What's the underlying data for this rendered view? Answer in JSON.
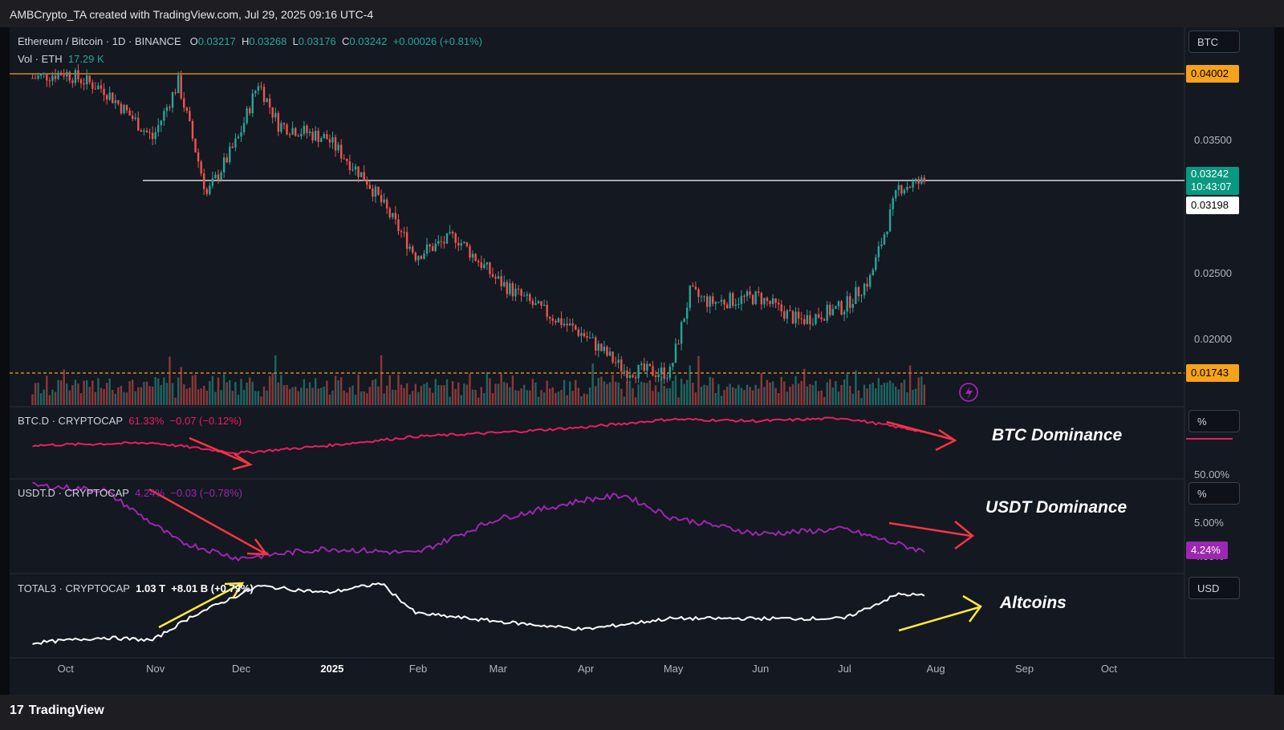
{
  "header": {
    "text": "AMBCrypto_TA created with TradingView.com, Jul 29, 2025 09:16 UTC-4"
  },
  "footer": {
    "brand": "TradingView",
    "brand_mark": "17"
  },
  "main_pane": {
    "symbol": "Ethereum / Bitcoin · 1D · BINANCE",
    "o_label": "O",
    "o": "0.03217",
    "h_label": "H",
    "h": "0.03268",
    "l_label": "L",
    "l": "0.03176",
    "c_label": "C",
    "c": "0.03242",
    "change": "+0.00026 (+0.81%)",
    "vol_label": "Vol · ETH",
    "vol": "17.29 K",
    "currency_button": "BTC",
    "price_ticks": [
      "0.03500",
      "0.02500",
      "0.02000"
    ],
    "tags": {
      "resistance": "0.04002",
      "last": "0.03242",
      "countdown": "10:43:07",
      "level": "0.03198",
      "support": "0.01743"
    },
    "colors": {
      "up": "#26a69a",
      "down": "#ef5350",
      "resistance": "#f7a21b",
      "support": "#f7a21b",
      "hline": "#ffffff"
    }
  },
  "btcd_pane": {
    "symbol": "BTC.D · CRYPTOCAP",
    "value": "61.33%",
    "change": "−0.07 (−0.12%)",
    "unit_button": "%",
    "tick": "50.00%",
    "annotation": "BTC Dominance",
    "color": "#e91e63"
  },
  "usdt_pane": {
    "symbol": "USDT.D · CRYPTOCAP",
    "value": "4.24%",
    "change": "−0.03 (−0.78%)",
    "unit_button": "%",
    "tick": "5.00%",
    "tick_low": "4.00%",
    "tag": "4.24%",
    "annotation": "USDT Dominance",
    "color": "#9c27b0"
  },
  "total3_pane": {
    "symbol": "TOTAL3 · CRYPTOCAP",
    "value": "1.03 T",
    "change": "+8.01 B (+0.79%)",
    "unit_button": "USD",
    "annotation": "Altcoins",
    "color": "#ffffff"
  },
  "time_axis": [
    "Oct",
    "Nov",
    "Dec",
    "2025",
    "Feb",
    "Mar",
    "Apr",
    "May",
    "Jun",
    "Jul",
    "Aug",
    "Sep",
    "Oct"
  ],
  "chart_data": [
    {
      "type": "line",
      "title": "Ethereum / Bitcoin · 1D · BINANCE",
      "x": [
        "2024-09-20",
        "2024-10-01",
        "2024-10-15",
        "2024-11-01",
        "2024-11-10",
        "2024-11-20",
        "2024-12-01",
        "2024-12-08",
        "2024-12-15",
        "2025-01-01",
        "2025-01-15",
        "2025-02-01",
        "2025-02-15",
        "2025-03-01",
        "2025-03-15",
        "2025-04-01",
        "2025-04-15",
        "2025-05-01",
        "2025-05-08",
        "2025-05-15",
        "2025-06-01",
        "2025-06-15",
        "2025-07-01",
        "2025-07-10",
        "2025-07-20",
        "2025-07-29"
      ],
      "series": [
        {
          "values": [
            0.0398,
            0.0402,
            0.039,
            0.0355,
            0.0395,
            0.0315,
            0.0355,
            0.0395,
            0.0365,
            0.0355,
            0.0325,
            0.0272,
            0.0285,
            0.0255,
            0.0235,
            0.0215,
            0.019,
            0.0188,
            0.0245,
            0.0238,
            0.0242,
            0.0225,
            0.0235,
            0.0255,
            0.032,
            0.03242
          ]
        }
      ],
      "ylim": [
        0.0165,
        0.0425
      ],
      "hlines": [
        0.04002,
        0.03198,
        0.01743
      ]
    },
    {
      "type": "line",
      "title": "BTC.D · CRYPTOCAP",
      "x": [
        "2024-09-20",
        "2024-11-01",
        "2024-12-01",
        "2025-01-01",
        "2025-02-01",
        "2025-03-01",
        "2025-04-01",
        "2025-05-01",
        "2025-06-01",
        "2025-07-01",
        "2025-07-29"
      ],
      "series": [
        {
          "values": [
            57.6,
            58.3,
            55.5,
            57.5,
            60.0,
            61.0,
            62.5,
            64.7,
            64.2,
            65.0,
            61.33
          ]
        }
      ],
      "ylim": [
        50,
        67
      ]
    },
    {
      "type": "line",
      "title": "USDT.D · CRYPTOCAP",
      "x": [
        "2024-09-20",
        "2024-10-15",
        "2024-11-10",
        "2024-12-01",
        "2025-01-01",
        "2025-02-01",
        "2025-03-01",
        "2025-04-01",
        "2025-04-15",
        "2025-05-01",
        "2025-06-01",
        "2025-07-01",
        "2025-07-29"
      ],
      "series": [
        {
          "values": [
            5.6,
            5.5,
            4.45,
            4.1,
            4.3,
            4.2,
            4.9,
            5.3,
            5.4,
            4.95,
            4.6,
            4.7,
            4.24
          ]
        }
      ],
      "ylim": [
        3.95,
        5.6
      ]
    },
    {
      "type": "line",
      "title": "TOTAL3 · CRYPTOCAP",
      "x": [
        "2024-09-20",
        "2024-10-15",
        "2024-11-01",
        "2024-11-15",
        "2024-12-08",
        "2025-01-01",
        "2025-01-20",
        "2025-02-01",
        "2025-03-01",
        "2025-04-01",
        "2025-05-01",
        "2025-06-01",
        "2025-07-01",
        "2025-07-20",
        "2025-07-29"
      ],
      "series": [
        {
          "values": [
            0.68,
            0.72,
            0.7,
            0.88,
            1.1,
            1.05,
            1.12,
            0.9,
            0.84,
            0.78,
            0.86,
            0.86,
            0.86,
            1.04,
            1.03
          ]
        }
      ],
      "ylim": [
        0.6,
        1.15
      ]
    }
  ]
}
